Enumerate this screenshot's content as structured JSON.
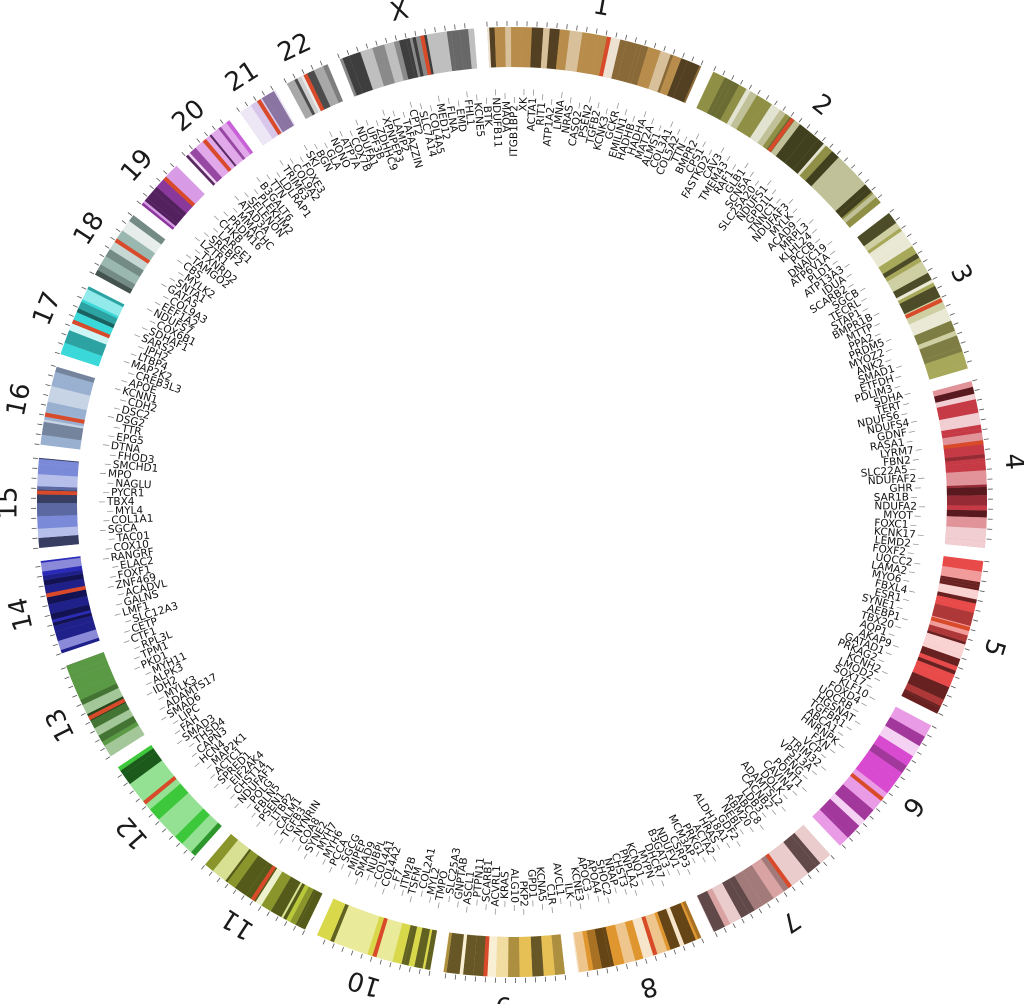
{
  "figure": {
    "type": "circos",
    "chromosomes": [
      {
        "name": "1",
        "length": 248,
        "color": "#b88c4a"
      },
      {
        "name": "2",
        "length": 242,
        "color": "#8f8f45"
      },
      {
        "name": "3",
        "length": 198,
        "color": "#a8a85a"
      },
      {
        "name": "4",
        "length": 190,
        "color": "#c63a46"
      },
      {
        "name": "5",
        "length": 181,
        "color": "#e84a4a"
      },
      {
        "name": "6",
        "length": 171,
        "color": "#d84ad0"
      },
      {
        "name": "7",
        "length": 159,
        "color": "#d9a3a3"
      },
      {
        "name": "8",
        "length": 145,
        "color": "#e0962e"
      },
      {
        "name": "9",
        "length": 138,
        "color": "#e6bf55"
      },
      {
        "name": "10",
        "length": 134,
        "color": "#d8d84a"
      },
      {
        "name": "11",
        "length": 135,
        "color": "#b8c83a"
      },
      {
        "name": "12",
        "length": 133,
        "color": "#3cc83a"
      },
      {
        "name": "13",
        "length": 114,
        "color": "#5a9a45"
      },
      {
        "name": "14",
        "length": 107,
        "color": "#2a2ab8"
      },
      {
        "name": "15",
        "length": 102,
        "color": "#7a8ad8"
      },
      {
        "name": "16",
        "length": 90,
        "color": "#9ab0d0"
      },
      {
        "name": "17",
        "length": 83,
        "color": "#3ad8d8"
      },
      {
        "name": "18",
        "length": 80,
        "color": "#9ab8b0"
      },
      {
        "name": "19",
        "length": 59,
        "color": "#b84ad0"
      },
      {
        "name": "20",
        "length": 64,
        "color": "#c860d8"
      },
      {
        "name": "21",
        "length": 47,
        "color": "#b89ad8"
      },
      {
        "name": "22",
        "length": 51,
        "color": "#a8a8a8"
      },
      {
        "name": "X",
        "length": 156,
        "color": "#8a8a8a"
      }
    ],
    "genes": [
      "ACTA1",
      "RIT1",
      "ATP1A2",
      "LMNA",
      "NRAS",
      "CASQ2",
      "PSEN2",
      "TGFB2",
      "KCNK3",
      "GCKR",
      "EMILIN1",
      "HADHB",
      "HADHA",
      "MAT2A",
      "ALMS1",
      "COL3A1",
      "COL5A2",
      "TTN",
      "BMPR2",
      "CPS1",
      "FASTKD2",
      "CAV3",
      "TMEM43",
      "RAF1",
      "GLB1",
      "SCN5A",
      "SLC25A20",
      "NDUFS1",
      "GPD1L",
      "TNNC1",
      "NDUFAF3",
      "MYLK",
      "ACAD9",
      "MRPL3",
      "KLHL24",
      "PCCB",
      "DNAJC19",
      "ATP6V1A",
      "PLD1",
      "ATP13A3",
      "IDUA",
      "SCARB2",
      "SGCB",
      "TECRL",
      "STAP1",
      "BMPR1B",
      "MTTP",
      "PPA2",
      "PRDM5",
      "MYOZ2",
      "ANK2",
      "SMAD1",
      "ETFDH",
      "PDLIM3",
      "SDHA",
      "TERT",
      "NDUFS6",
      "NDUFS4",
      "GDNF",
      "RASA1",
      "LYRM7",
      "FBN2",
      "SLC22A5",
      "NDUFAF2",
      "GHR",
      "SAR1B",
      "NDUFA2",
      "MYOT",
      "FOXC1",
      "KCNK17",
      "LEMD2",
      "FOXF2",
      "UQCC2",
      "LAMA2",
      "MYO6",
      "FBXL4",
      "ESR1",
      "SYNE1",
      "AEBP1",
      "TBX20",
      "AQP1",
      "AKAP9",
      "GATAD1",
      "PRKAG2",
      "KCNH2",
      "LMOD2",
      "SOX17",
      "KLF10",
      "FOXD4",
      "UQCRB",
      "HGSNAT",
      "TGFBR1",
      "ABCA1",
      "HNRNPK",
      "FXN",
      "VCP",
      "TRIM32",
      "VPS13A",
      "ENG",
      "POMT1",
      "CAVIN4",
      "DOLK",
      "ADAMTSL2",
      "CACNB2",
      "LDB3",
      "ABCC8",
      "RBM20",
      "NEBL",
      "GDF2",
      "ALDH18A1",
      "HRAS",
      "ACTA2",
      "PRKG1",
      "MCM3AP",
      "CSRP3",
      "NDUFV1",
      "B3GAT3",
      "DHCR7",
      "MYPN",
      "KCNQ1",
      "PNPLA2",
      "CHST3",
      "NRAP",
      "SHOC2",
      "APOA4",
      "APOC3",
      "KCNE3",
      "ILK",
      "AVCL1",
      "C1R",
      "KCNA5",
      "GPD1",
      "PKP2",
      "ALG10",
      "KRAS",
      "ACVRL1",
      "SCARB1",
      "PTPN11",
      "ASCL1",
      "GNPTAB",
      "SLC25A3",
      "TMPO",
      "MYL2",
      "COL2A1",
      "TSFM",
      "ITM2B",
      "F7",
      "COL4A2",
      "COL4A1",
      "NUBPL",
      "SMAD9",
      "MIPEP",
      "SGCG",
      "PCCA",
      "MYH6",
      "MYH7",
      "SYNE2",
      "COA8",
      "NYNRIN",
      "TGFB3",
      "CALM1",
      "LTBP2",
      "PSEN1",
      "FBLN5",
      "POLG",
      "NDUFAF1",
      "CHST14",
      "EIF2AK4",
      "SPRED1",
      "ACTC1",
      "MAP2K1",
      "HCN4",
      "CAPN3",
      "THSD4",
      "SMAD3",
      "FAH",
      "LIPC",
      "SMAD6",
      "ADAMTS17",
      "MYLK3",
      "IDH2",
      "ALPK3",
      "MYH11",
      "PKD1",
      "TPM1",
      "RPL3L",
      "CTF1",
      "CETP",
      "SLC12A3",
      "LMF1",
      "GALNS",
      "ACADVL",
      "ZNF469",
      "FOXF1",
      "ELAC2",
      "RANGRF",
      "COX10",
      "TAC01",
      "SGCA",
      "COL1A1",
      "MYL4",
      "TBX4",
      "PYCR1",
      "NAGLU",
      "MPO",
      "SMCHD1",
      "FHOD3",
      "DTNA",
      "EPG5",
      "TTR",
      "DSG2",
      "DSC2",
      "CDH2",
      "KCNN1",
      "APOE",
      "CREB3L3",
      "MAP2K2",
      "LTBP4",
      "JPH2",
      "SARS2",
      "SDHAF1",
      "COX6B1",
      "NDUFS7",
      "EEF1A2",
      "COL9A3",
      "GATA5",
      "SNTA1",
      "MYLK2",
      "CBS",
      "TAMGO2",
      "TXNRD2",
      "LZTR1",
      "SREBF2",
      "LARGE1",
      "CHKB",
      "PRDM16",
      "MMACHC",
      "ATAD3A",
      "SELENON",
      "PLEKHM2",
      "B3GALT6",
      "TTN",
      "LDLRAP1",
      "TRIM63",
      "COL9A2",
      "FOXE3",
      "SKI",
      "BGN",
      "GLA",
      "NONO",
      "ATP7A",
      "COX7B",
      "NDUFA1",
      "UPF3B",
      "ZDHHC9",
      "XPNPEP3",
      "LAMP2",
      "TAFAZZIN",
      "CPT2",
      "SLC7A14",
      "COL4A5",
      "MED12",
      "FLNA",
      "EMD",
      "FHL1",
      "KCNE5",
      "BTK",
      "NDUFB11",
      "MAOA",
      "ITGB1BP2",
      "XK"
    ],
    "track_labels": {
      "outer_ring": "",
      "inner_ring": ""
    }
  }
}
